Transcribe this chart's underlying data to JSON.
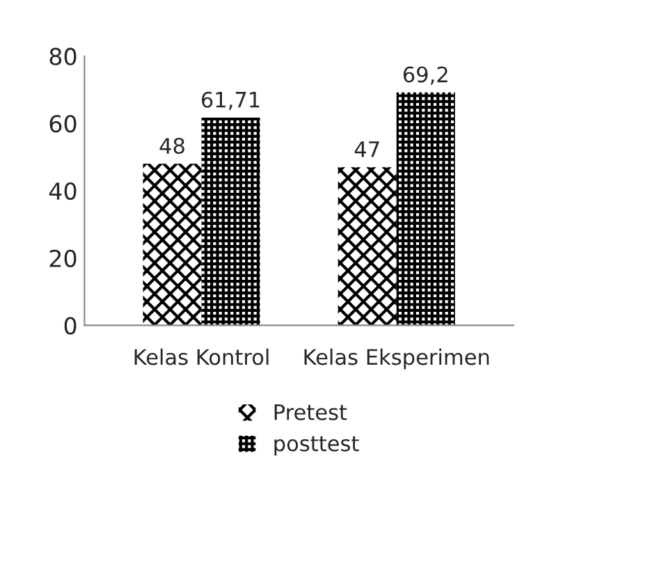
{
  "chart_data": {
    "type": "bar",
    "categories": [
      "Kelas Kontrol",
      "Kelas Eksperimen"
    ],
    "series": [
      {
        "name": "Pretest",
        "color": "#000000",
        "values": [
          48,
          47
        ],
        "value_labels": [
          "48",
          "47"
        ]
      },
      {
        "name": "posttest",
        "color": "#000000",
        "values": [
          61.71,
          69.2
        ],
        "value_labels": [
          "61,71",
          "69,2"
        ]
      }
    ],
    "ylim": [
      0,
      80
    ],
    "yticks": [
      0,
      20,
      40,
      60,
      80
    ],
    "grid": false,
    "legend": "bottom"
  }
}
